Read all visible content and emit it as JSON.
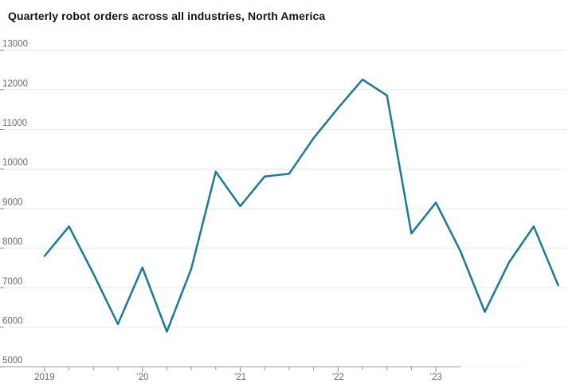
{
  "title": "Quarterly robot orders across all industries, North America",
  "colors": {
    "line": "#1b7a96",
    "grid": "#e9e9e9",
    "grid_faint": "#f2f2f2",
    "axis": "#a3a3a3",
    "tick": "#8c8c8c",
    "label": "#6b6b6b",
    "title_text": "#141414",
    "background": "#ffffff"
  },
  "chart_data": {
    "type": "line",
    "title": "Quarterly robot orders across all industries, North America",
    "series_name": "Quarterly robot orders",
    "x": [
      "Q1 2019",
      "Q2 2019",
      "Q3 2019",
      "Q4 2019",
      "Q1 2020",
      "Q2 2020",
      "Q3 2020",
      "Q4 2020",
      "Q1 2021",
      "Q2 2021",
      "Q3 2021",
      "Q4 2021",
      "Q1 2022",
      "Q2 2022",
      "Q3 2022",
      "Q4 2022",
      "Q1 2023",
      "Q2 2023",
      "Q3 2023",
      "Q4 2023",
      "Q1 2024",
      "Q2 2024"
    ],
    "values": [
      7800,
      8550,
      7350,
      6080,
      7510,
      5890,
      7480,
      9930,
      9060,
      9810,
      9880,
      10780,
      11540,
      12260,
      11860,
      8370,
      9150,
      7930,
      6390,
      7650,
      8550,
      7060
    ],
    "ylim": [
      5000,
      13000
    ],
    "yticks": [
      5000,
      6000,
      7000,
      8000,
      9000,
      10000,
      11000,
      12000,
      13000
    ],
    "x_axis_labels": [
      {
        "label": "2019",
        "index": 0
      },
      {
        "label": "’20",
        "index": 4
      },
      {
        "label": "’21",
        "index": 8
      },
      {
        "label": "’22",
        "index": 12
      },
      {
        "label": "’23",
        "index": 16
      }
    ],
    "x_tick_quarters": 17,
    "grid": "horizontal",
    "legend": "none",
    "xlabel": "",
    "ylabel": ""
  }
}
